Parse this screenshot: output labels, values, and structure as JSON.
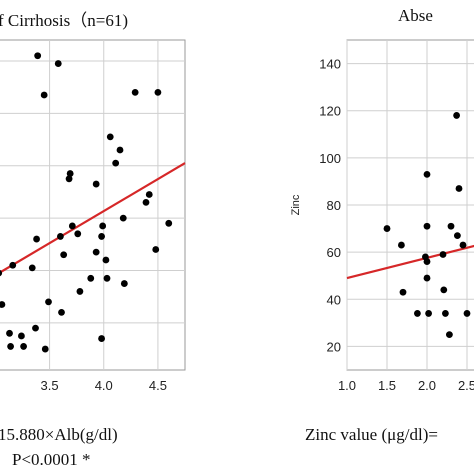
{
  "texts": {
    "title_left": "f Cirrhosis（n=61)",
    "title_right": "Abse",
    "formula_left": "15.880×Alb(g/dl)",
    "pvalue_left": "P<0.0001 *",
    "formula_right": "Zinc value (μg/dl)="
  },
  "colors": {
    "point": "#000000",
    "regression": "#d62728",
    "grid": "#cfcfcf",
    "frame": "#9a9a9a"
  },
  "chart_data": [
    {
      "type": "scatter",
      "title": "f Cirrhosis（n=61)",
      "xlabel": "",
      "ylabel": "",
      "xlim": [
        2.95,
        4.75
      ],
      "ylim": [
        22,
        148
      ],
      "xticks": [
        "3.5",
        "4.0",
        "4.5"
      ],
      "grid": true,
      "points": [
        {
          "x": 3.39,
          "y": 142
        },
        {
          "x": 3.58,
          "y": 139
        },
        {
          "x": 3.45,
          "y": 127
        },
        {
          "x": 4.29,
          "y": 128
        },
        {
          "x": 4.5,
          "y": 128
        },
        {
          "x": 4.06,
          "y": 111
        },
        {
          "x": 4.15,
          "y": 106
        },
        {
          "x": 4.11,
          "y": 101
        },
        {
          "x": 3.69,
          "y": 97
        },
        {
          "x": 3.68,
          "y": 95
        },
        {
          "x": 3.93,
          "y": 93
        },
        {
          "x": 4.42,
          "y": 89
        },
        {
          "x": 4.39,
          "y": 86
        },
        {
          "x": 4.18,
          "y": 80
        },
        {
          "x": 3.71,
          "y": 77
        },
        {
          "x": 4.6,
          "y": 78
        },
        {
          "x": 3.6,
          "y": 73
        },
        {
          "x": 3.76,
          "y": 74
        },
        {
          "x": 3.38,
          "y": 72
        },
        {
          "x": 3.98,
          "y": 73
        },
        {
          "x": 3.99,
          "y": 77
        },
        {
          "x": 3.93,
          "y": 67
        },
        {
          "x": 4.48,
          "y": 68
        },
        {
          "x": 3.63,
          "y": 66
        },
        {
          "x": 4.02,
          "y": 64
        },
        {
          "x": 3.03,
          "y": 59
        },
        {
          "x": 3.16,
          "y": 62
        },
        {
          "x": 3.34,
          "y": 61
        },
        {
          "x": 3.88,
          "y": 57
        },
        {
          "x": 4.03,
          "y": 57
        },
        {
          "x": 4.19,
          "y": 55
        },
        {
          "x": 3.78,
          "y": 52
        },
        {
          "x": 3.49,
          "y": 48
        },
        {
          "x": 3.06,
          "y": 47
        },
        {
          "x": 3.61,
          "y": 44
        },
        {
          "x": 3.37,
          "y": 38
        },
        {
          "x": 3.13,
          "y": 36
        },
        {
          "x": 3.24,
          "y": 35
        },
        {
          "x": 3.0,
          "y": 31
        },
        {
          "x": 3.14,
          "y": 31
        },
        {
          "x": 3.46,
          "y": 30
        },
        {
          "x": 3.26,
          "y": 31
        },
        {
          "x": 3.98,
          "y": 34
        }
      ],
      "regression": {
        "x": [
          2.95,
          4.75
        ],
        "y": [
          57,
          101
        ]
      }
    },
    {
      "type": "scatter",
      "title": "Abse",
      "xlabel": "",
      "ylabel": "Zinc",
      "xlim": [
        1.0,
        2.75
      ],
      "ylim": [
        10,
        150
      ],
      "xticks": [
        "1.0",
        "1.5",
        "2.0",
        "2.5"
      ],
      "yticks": [
        "20",
        "40",
        "60",
        "80",
        "100",
        "120",
        "140"
      ],
      "grid": true,
      "points": [
        {
          "x": 1.5,
          "y": 70
        },
        {
          "x": 1.68,
          "y": 63
        },
        {
          "x": 1.7,
          "y": 43
        },
        {
          "x": 1.88,
          "y": 34
        },
        {
          "x": 2.0,
          "y": 93
        },
        {
          "x": 2.0,
          "y": 71
        },
        {
          "x": 1.98,
          "y": 58
        },
        {
          "x": 2.0,
          "y": 56
        },
        {
          "x": 2.0,
          "y": 49
        },
        {
          "x": 2.02,
          "y": 34
        },
        {
          "x": 2.2,
          "y": 59
        },
        {
          "x": 2.21,
          "y": 44
        },
        {
          "x": 2.23,
          "y": 34
        },
        {
          "x": 2.28,
          "y": 25
        },
        {
          "x": 2.3,
          "y": 71
        },
        {
          "x": 2.37,
          "y": 118
        },
        {
          "x": 2.38,
          "y": 67
        },
        {
          "x": 2.4,
          "y": 87
        },
        {
          "x": 2.45,
          "y": 63
        },
        {
          "x": 2.5,
          "y": 34
        }
      ],
      "regression": {
        "x": [
          1.0,
          2.75
        ],
        "y": [
          49,
          64
        ]
      }
    }
  ]
}
